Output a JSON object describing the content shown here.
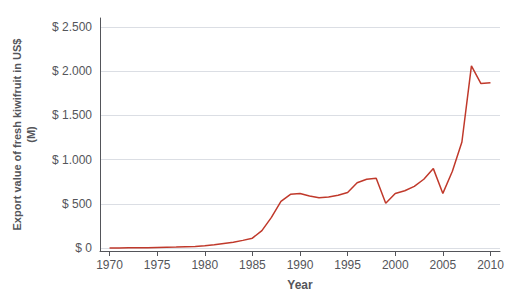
{
  "chart_data": {
    "type": "line",
    "x": [
      1970,
      1971,
      1972,
      1973,
      1974,
      1975,
      1976,
      1977,
      1978,
      1979,
      1980,
      1981,
      1982,
      1983,
      1984,
      1985,
      1986,
      1987,
      1988,
      1989,
      1990,
      1991,
      1992,
      1993,
      1994,
      1995,
      1996,
      1997,
      1998,
      1999,
      2000,
      2001,
      2002,
      2003,
      2004,
      2005,
      2006,
      2007,
      2008,
      2009,
      2010
    ],
    "values": [
      5,
      5,
      6,
      7,
      8,
      10,
      12,
      14,
      18,
      22,
      30,
      40,
      55,
      70,
      90,
      115,
      200,
      350,
      530,
      610,
      620,
      590,
      570,
      580,
      600,
      630,
      740,
      780,
      790,
      510,
      620,
      650,
      700,
      780,
      900,
      620,
      870,
      1200,
      2060,
      1860,
      1870
    ],
    "color": "#c0392b",
    "xlabel": "Year",
    "ylabel": "Export value of fresh kiwifruit in US$\n(M)",
    "xlim": [
      1969,
      2011
    ],
    "xticks": [
      1970,
      1975,
      1980,
      1985,
      1990,
      1995,
      2000,
      2005,
      2010
    ],
    "ylim": [
      -30,
      2600
    ],
    "yticks": [
      {
        "value": 0,
        "label": "$ 0"
      },
      {
        "value": 500,
        "label": "$ 500"
      },
      {
        "value": 1000,
        "label": "$ 1.000"
      },
      {
        "value": 1500,
        "label": "$ 1.500"
      },
      {
        "value": 2000,
        "label": "$ 2.000"
      },
      {
        "value": 2500,
        "label": "$ 2.500"
      }
    ],
    "grid": true
  }
}
